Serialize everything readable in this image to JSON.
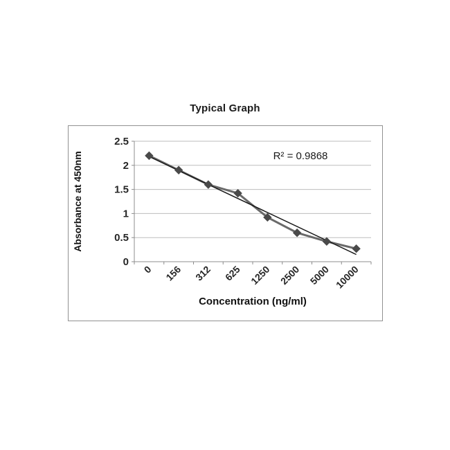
{
  "page": {
    "background": "#ffffff"
  },
  "chart": {
    "title": "Typical Graph",
    "y_axis_title": "Absorbance at 450nm",
    "x_axis_title": "Concentration (ng/ml)",
    "r_squared_label": "R² = 0.9868"
  },
  "chart_data": {
    "type": "line",
    "title": "Typical Graph",
    "categories": [
      "0",
      "156",
      "312",
      "625",
      "1250",
      "2500",
      "5000",
      "10000"
    ],
    "values": [
      2.2,
      1.9,
      1.6,
      1.42,
      0.92,
      0.6,
      0.42,
      0.27
    ],
    "xlabel": "Concentration (ng/ml)",
    "ylabel": "Absorbance at 450nm",
    "ylim": [
      0,
      2.5
    ],
    "y_ticks": [
      0,
      0.5,
      1,
      1.5,
      2,
      2.5
    ],
    "grid": true,
    "legend": "none",
    "annotation": "R² = 0.9868",
    "trendline": {
      "type": "linear",
      "r_squared": 0.9868
    },
    "colors": {
      "series_line": "#6a6a6a",
      "marker": "#4a4a4a",
      "trendline": "#1a1a1a",
      "gridline": "#bdbdbd",
      "axis": "#8c8c8c"
    }
  }
}
